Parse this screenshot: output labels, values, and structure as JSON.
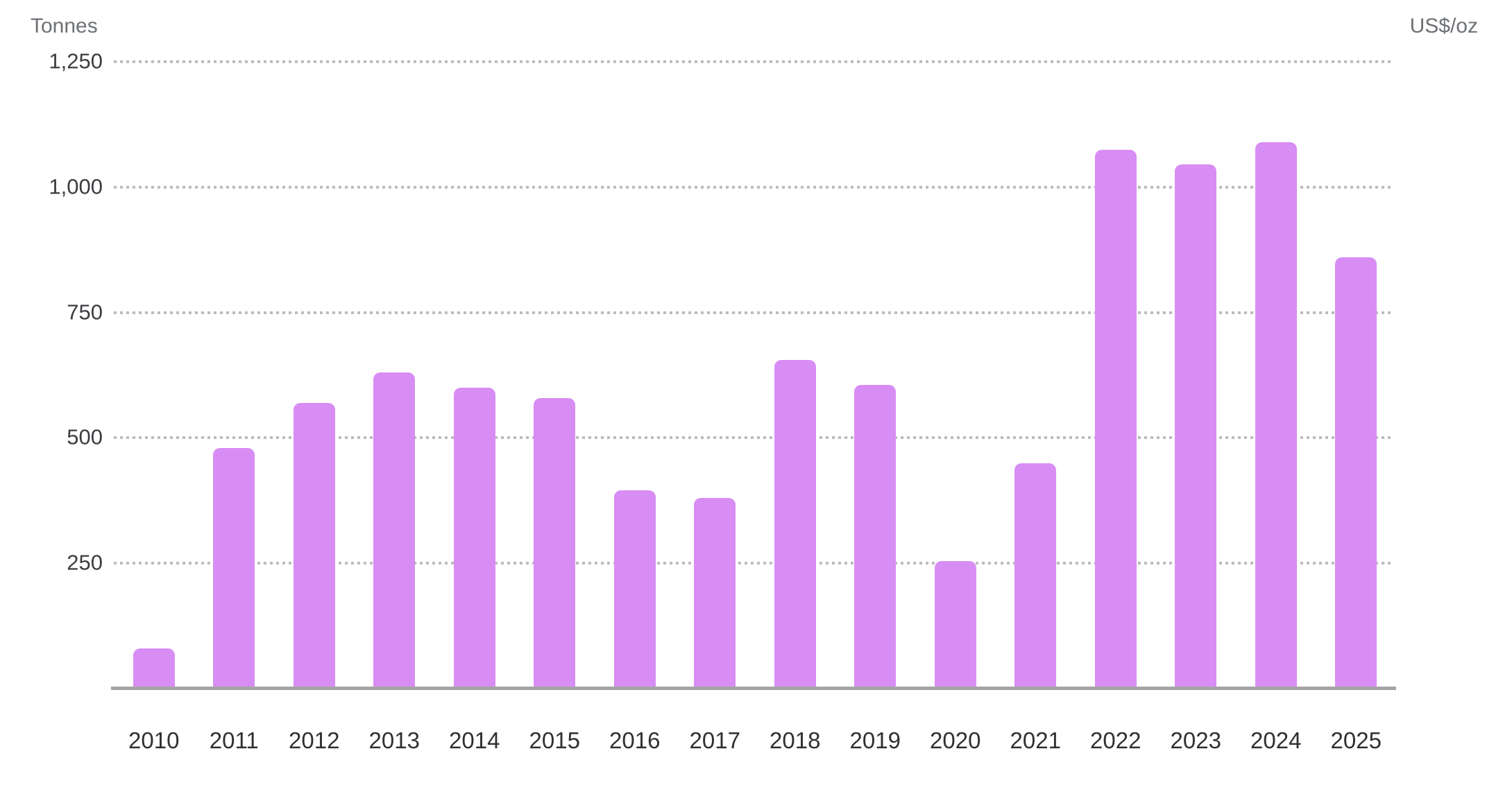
{
  "chart_data": {
    "type": "bar",
    "title": "",
    "left_axis_label": "Tonnes",
    "right_axis_label": "US$/oz",
    "categories": [
      "2010",
      "2011",
      "2012",
      "2013",
      "2014",
      "2015",
      "2016",
      "2017",
      "2018",
      "2019",
      "2020",
      "2021",
      "2022",
      "2023",
      "2024",
      "2025"
    ],
    "series": [
      {
        "name": "Tonnes",
        "values": [
          80,
          480,
          570,
          630,
          600,
          580,
          395,
          380,
          655,
          605,
          255,
          450,
          1075,
          1045,
          1090,
          860
        ]
      }
    ],
    "yticks": [
      250,
      500,
      750,
      1000,
      1250
    ],
    "ytick_labels": [
      "250",
      "500",
      "750",
      "1,000",
      "1,250"
    ],
    "ylim": [
      0,
      1290
    ],
    "right_axis_ticks_visible": false,
    "grid": "horizontal-dotted",
    "legend_position": "none",
    "bar_color": "#d88df4"
  },
  "colors": {
    "bar": "#d88df4",
    "gridline": "#bcbcbc",
    "baseline": "#a5a5a5",
    "axis_title_text": "#6d7175",
    "y_tick_text": "#3a3c40",
    "x_tick_text": "#2e3033",
    "background": "#ffffff"
  }
}
